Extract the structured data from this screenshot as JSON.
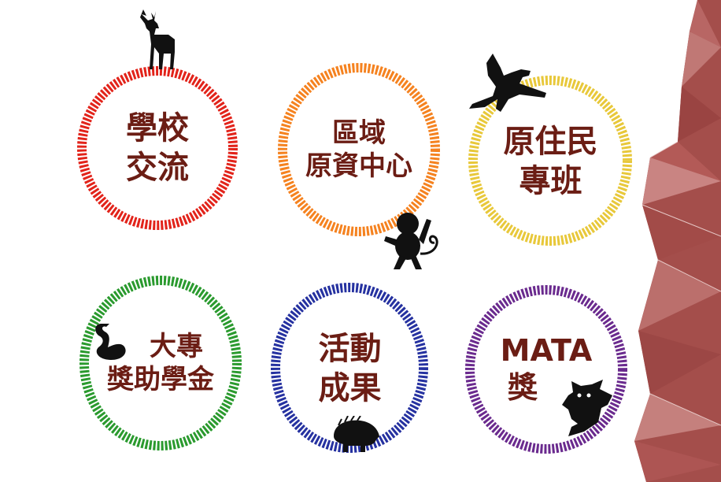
{
  "colors": {
    "text": "#6b1d14",
    "ring_red": "#e2231a",
    "ring_orange": "#f5821f",
    "ring_yellow": "#e8c83a",
    "ring_green": "#2a9a2e",
    "ring_blue": "#2531a0",
    "ring_purple": "#6a2a8e",
    "animal": "#111111",
    "deco": "#a44e4b"
  },
  "badges": [
    {
      "id": "school-exchange",
      "lines": [
        "學校",
        "交流"
      ],
      "ring": "ring_red",
      "animal_icon": "deer-icon"
    },
    {
      "id": "regional-resource-center",
      "lines": [
        "區域",
        "原資中心"
      ],
      "ring": "ring_orange",
      "animal_icon": "monkey-icon"
    },
    {
      "id": "indigenous-class",
      "lines": [
        "原住民",
        "專班"
      ],
      "ring": "ring_yellow",
      "animal_icon": "eagle-icon"
    },
    {
      "id": "college-scholarship",
      "lines": [
        "大專",
        "獎助學金"
      ],
      "ring": "ring_green",
      "animal_icon": "swan-icon"
    },
    {
      "id": "activity-results",
      "lines": [
        "活動",
        "成果"
      ],
      "ring": "ring_blue",
      "animal_icon": "boar-icon"
    },
    {
      "id": "mata-award",
      "lines": [
        "MATA",
        "獎"
      ],
      "ring": "ring_purple",
      "animal_icon": "flying-squirrel-icon"
    }
  ]
}
